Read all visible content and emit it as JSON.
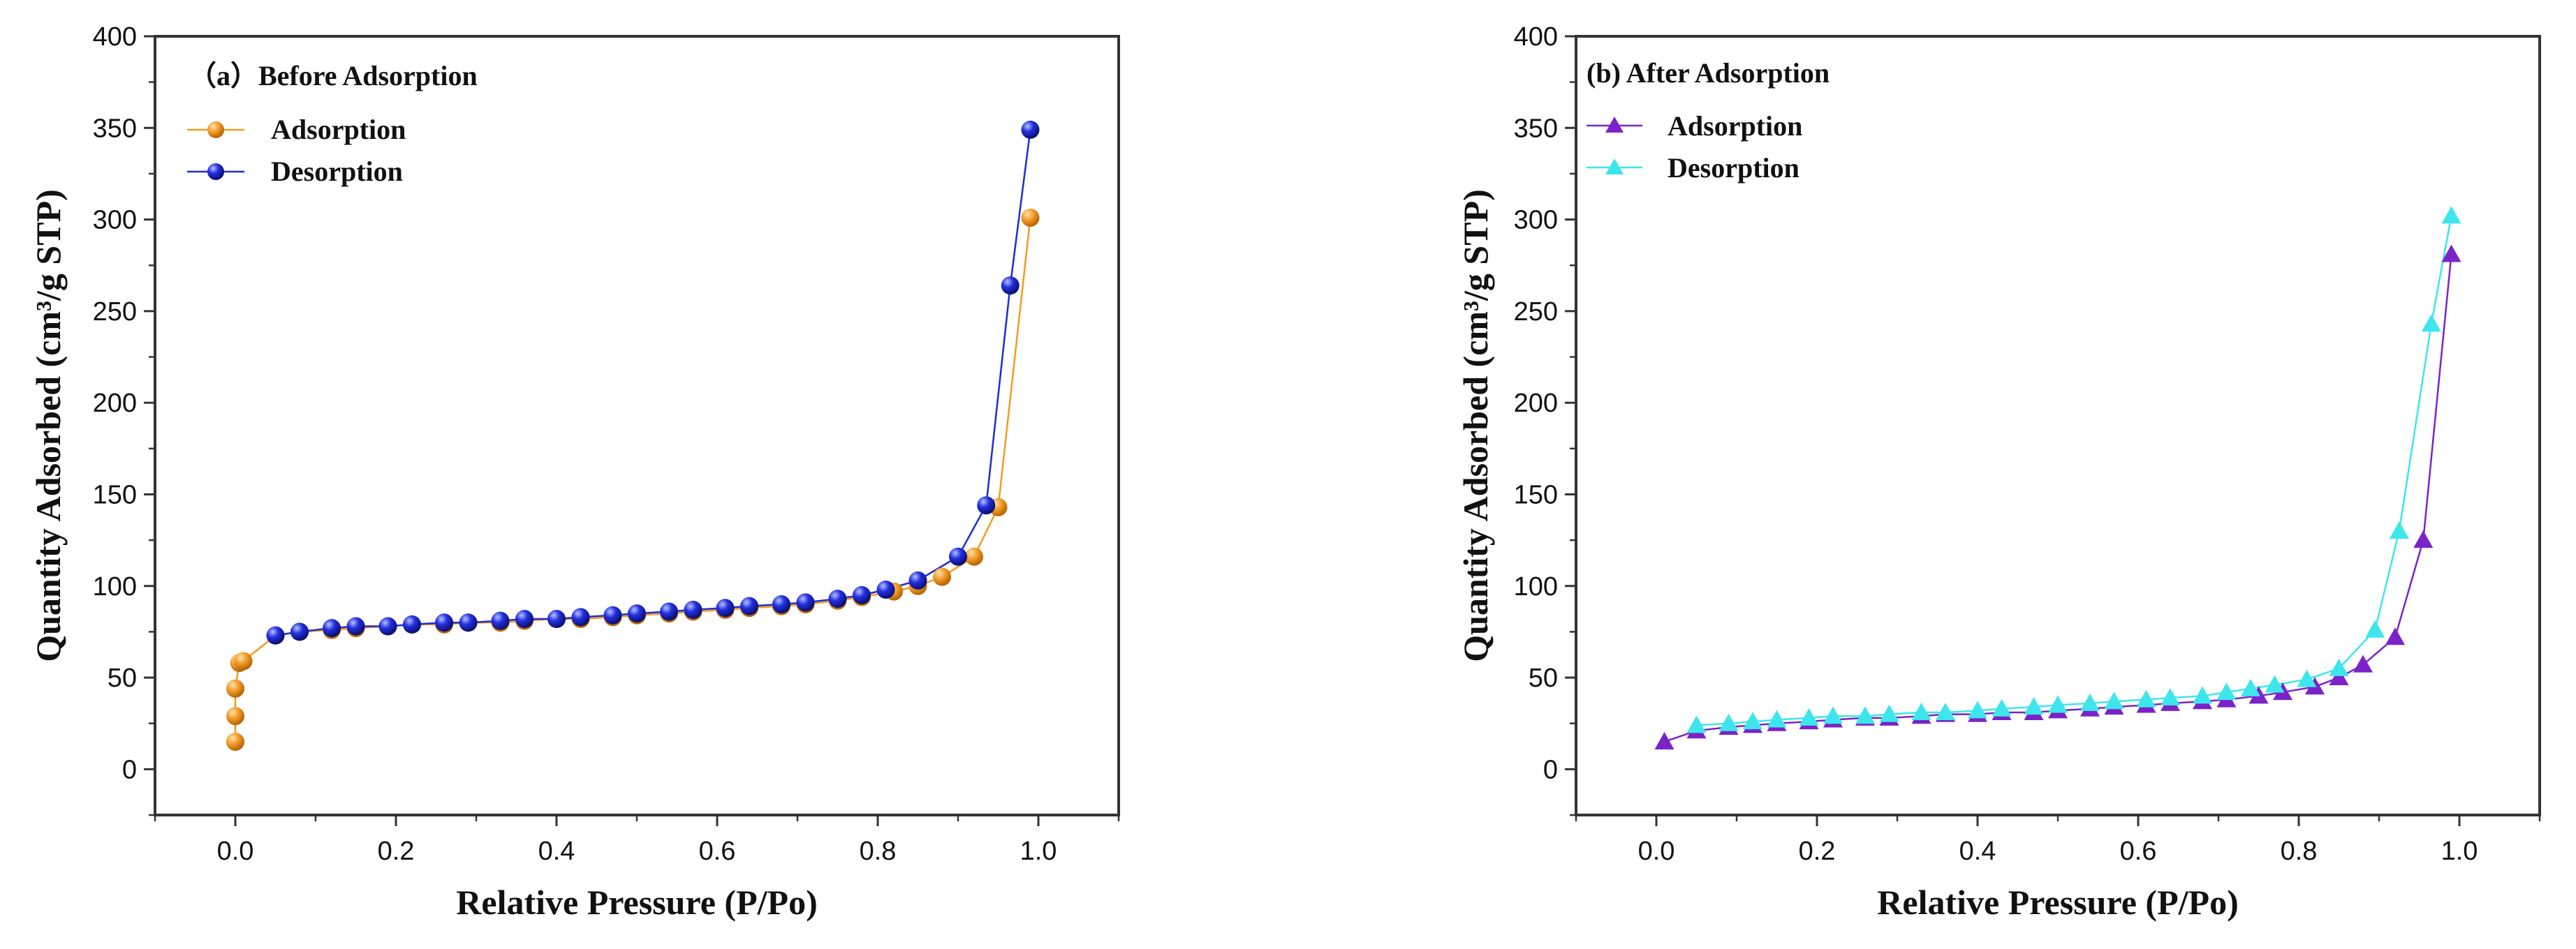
{
  "chart_data": [
    {
      "type": "line",
      "title": "（a）Before Adsorption",
      "xlabel": "Relative Pressure (P/Po)",
      "ylabel": "Quantity Adsorbed (cm³/g STP)",
      "xlim": [
        -0.1,
        1.1
      ],
      "ylim": [
        -25,
        400
      ],
      "xticks": [
        0.0,
        0.2,
        0.4,
        0.6,
        0.8,
        1.0
      ],
      "xtick_labels": [
        "0.0",
        "0.2",
        "0.4",
        "0.6",
        "0.8",
        "1.0"
      ],
      "yticks": [
        0,
        50,
        100,
        150,
        200,
        250,
        300,
        350,
        400
      ],
      "ytick_labels": [
        "0",
        "50",
        "100",
        "150",
        "200",
        "250",
        "300",
        "350",
        "400"
      ],
      "legend_position": "top-left",
      "grid": false,
      "series": [
        {
          "name": "Adsorption",
          "marker": "sphere",
          "color": "#f39b1f",
          "x": [
            0.0,
            0.0,
            0.0,
            0.005,
            0.01,
            0.05,
            0.08,
            0.12,
            0.15,
            0.19,
            0.22,
            0.26,
            0.29,
            0.33,
            0.36,
            0.4,
            0.43,
            0.47,
            0.5,
            0.54,
            0.57,
            0.61,
            0.64,
            0.68,
            0.71,
            0.75,
            0.78,
            0.82,
            0.85,
            0.88,
            0.92,
            0.95,
            0.99
          ],
          "y": [
            15,
            29,
            44,
            58,
            59,
            73,
            75,
            76,
            77,
            78,
            79,
            79,
            80,
            80,
            81,
            82,
            82,
            83,
            84,
            85,
            86,
            87,
            88,
            89,
            90,
            92,
            94,
            97,
            100,
            105,
            116,
            143,
            301
          ]
        },
        {
          "name": "Desorption",
          "marker": "sphere",
          "color": "#1f2bd1",
          "x": [
            0.99,
            0.965,
            0.935,
            0.9,
            0.85,
            0.81,
            0.78,
            0.75,
            0.71,
            0.68,
            0.64,
            0.61,
            0.57,
            0.54,
            0.5,
            0.47,
            0.43,
            0.4,
            0.36,
            0.33,
            0.29,
            0.26,
            0.22,
            0.19,
            0.15,
            0.12,
            0.08,
            0.05
          ],
          "y": [
            349,
            264,
            144,
            116,
            103,
            98,
            95,
            93,
            91,
            90,
            89,
            88,
            87,
            86,
            85,
            84,
            83,
            82,
            82,
            81,
            80,
            80,
            79,
            78,
            78,
            77,
            75,
            73
          ]
        }
      ]
    },
    {
      "type": "line",
      "title": "(b) After Adsorption",
      "xlabel": "Relative Pressure (P/Po)",
      "ylabel": "Quantity Adsorbed (cm³/g STP)",
      "xlim": [
        -0.1,
        1.1
      ],
      "ylim": [
        -25,
        400
      ],
      "xticks": [
        0.0,
        0.2,
        0.4,
        0.6,
        0.8,
        1.0
      ],
      "xtick_labels": [
        "0.0",
        "0.2",
        "0.4",
        "0.6",
        "0.8",
        "1.0"
      ],
      "yticks": [
        0,
        50,
        100,
        150,
        200,
        250,
        300,
        350,
        400
      ],
      "ytick_labels": [
        "0",
        "50",
        "100",
        "150",
        "200",
        "250",
        "300",
        "350",
        "400"
      ],
      "legend_position": "top-left",
      "grid": false,
      "series": [
        {
          "name": "Adsorption",
          "marker": "triangle",
          "color": "#7b22c9",
          "x": [
            0.01,
            0.05,
            0.09,
            0.12,
            0.15,
            0.19,
            0.22,
            0.26,
            0.29,
            0.33,
            0.36,
            0.4,
            0.43,
            0.47,
            0.5,
            0.54,
            0.57,
            0.61,
            0.64,
            0.68,
            0.71,
            0.75,
            0.78,
            0.82,
            0.85,
            0.88,
            0.92,
            0.955,
            0.99
          ],
          "y": [
            15,
            21,
            23,
            24,
            25,
            26,
            27,
            28,
            28,
            29,
            30,
            30,
            31,
            31,
            32,
            33,
            34,
            35,
            36,
            37,
            38,
            40,
            42,
            45,
            50,
            57,
            72,
            125,
            281
          ]
        },
        {
          "name": "Desorption",
          "marker": "triangle",
          "color": "#3de6ec",
          "x": [
            0.99,
            0.965,
            0.925,
            0.895,
            0.85,
            0.81,
            0.77,
            0.74,
            0.71,
            0.68,
            0.64,
            0.61,
            0.57,
            0.54,
            0.5,
            0.47,
            0.43,
            0.4,
            0.36,
            0.33,
            0.29,
            0.26,
            0.22,
            0.19,
            0.15,
            0.12,
            0.09,
            0.05
          ],
          "y": [
            302,
            243,
            130,
            76,
            55,
            49,
            46,
            44,
            42,
            40,
            39,
            38,
            37,
            36,
            35,
            34,
            33,
            32,
            31,
            31,
            30,
            29,
            29,
            28,
            27,
            26,
            25,
            24
          ]
        }
      ]
    }
  ]
}
